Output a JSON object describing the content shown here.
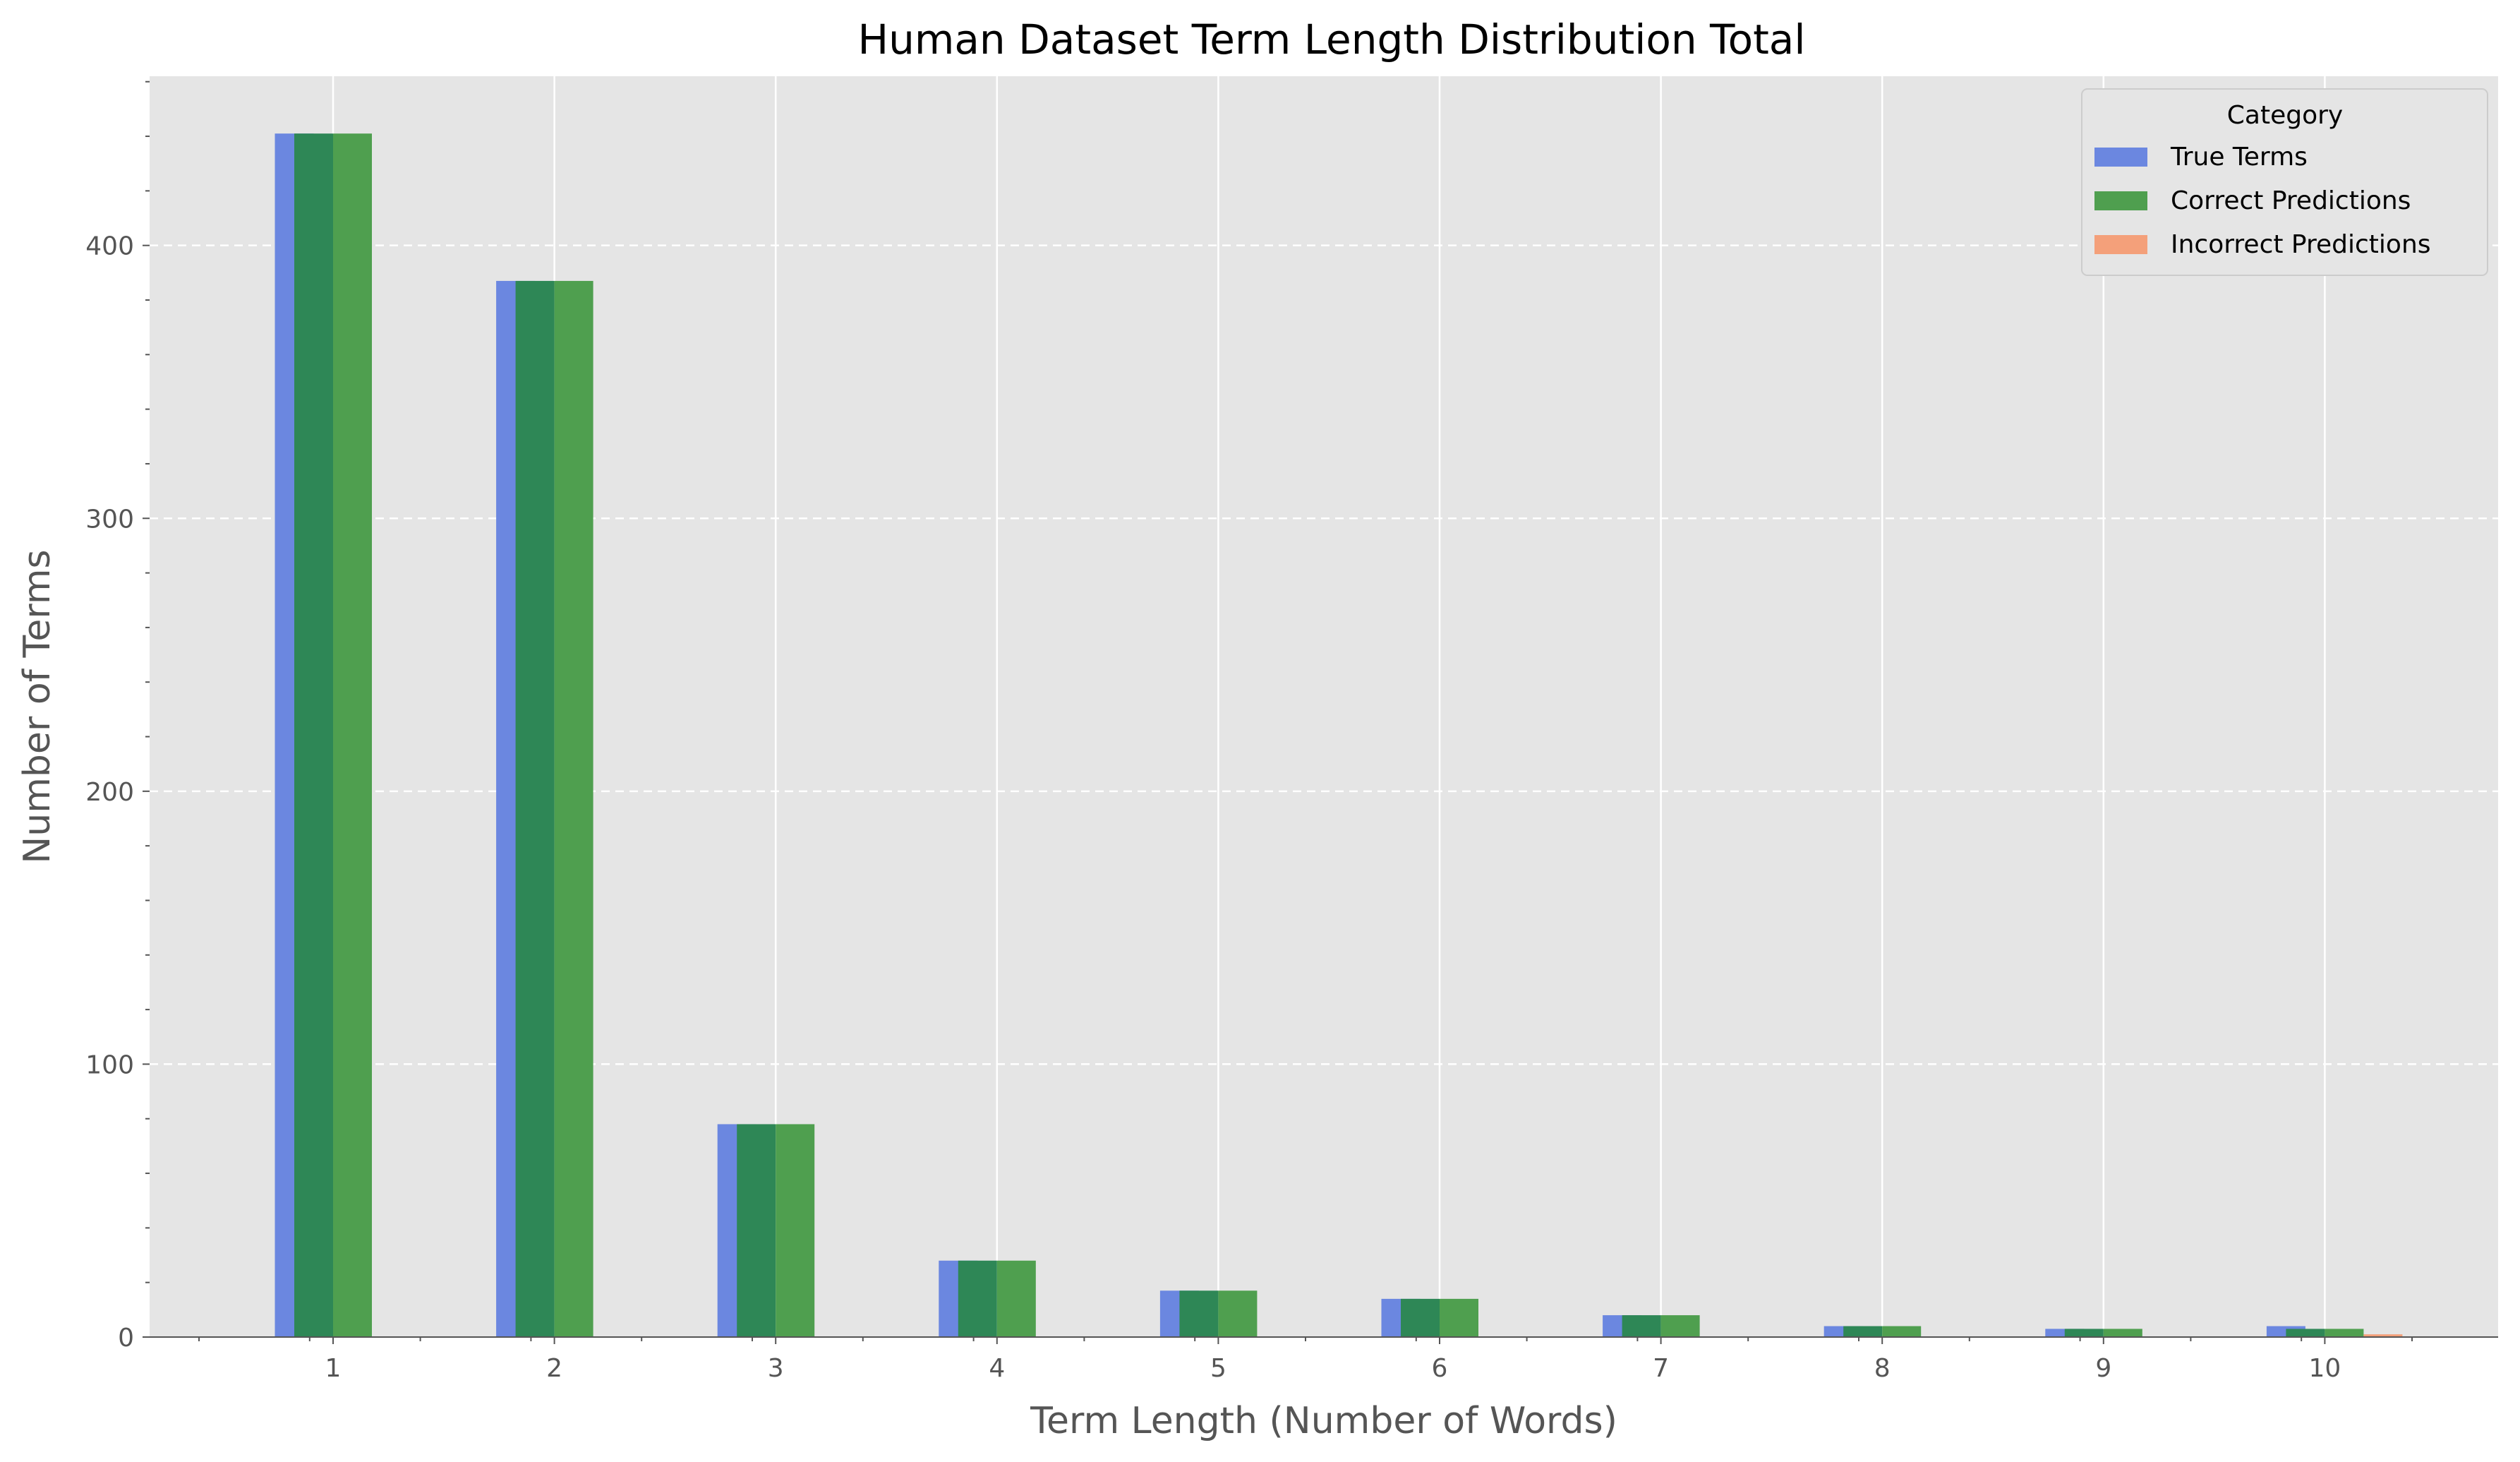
{
  "chart_data": {
    "type": "bar",
    "title": "Human Dataset Term Length Distribution Total",
    "xlabel": "Term Length (Number of Words)",
    "ylabel": "Number of Terms",
    "categories": [
      "1",
      "2",
      "3",
      "4",
      "5",
      "6",
      "7",
      "8",
      "9",
      "10"
    ],
    "series": [
      {
        "name": "True Terms",
        "color": "#6b87e0",
        "values": [
          441,
          387,
          78,
          28,
          17,
          14,
          8,
          4,
          3,
          4
        ]
      },
      {
        "name": "Correct Predictions",
        "color": "#4f9f4f",
        "values": [
          441,
          387,
          78,
          28,
          17,
          14,
          8,
          4,
          3,
          3
        ]
      },
      {
        "name": "Incorrect Predictions",
        "color": "#f4a07a",
        "values": [
          0,
          0,
          0,
          0,
          0,
          0,
          0,
          0,
          0,
          1
        ]
      }
    ],
    "overlap_color": "#2e8756",
    "yticks": [
      0,
      100,
      200,
      300,
      400
    ],
    "ylim": [
      0,
      462
    ],
    "grid": true,
    "plot_background": "#e5e5e5",
    "legend": {
      "title": "Category",
      "position": "top-right"
    }
  }
}
